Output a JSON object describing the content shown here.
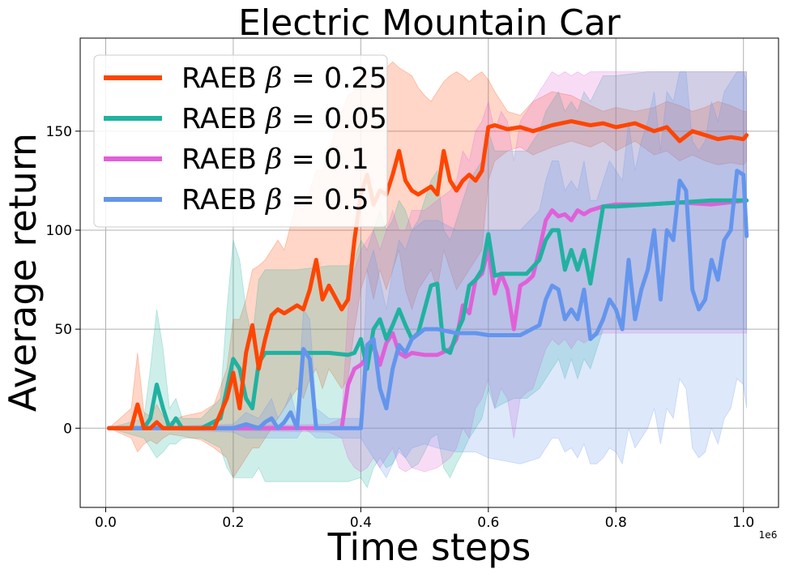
{
  "chart_data": {
    "type": "line",
    "title": "Electric Mountain Car",
    "xlabel": "Time steps",
    "ylabel": "Average return",
    "x_offset_label": "1e6",
    "xlim": [
      -0.04,
      1.055
    ],
    "ylim": [
      -40,
      197
    ],
    "xticks": [
      0.0,
      0.2,
      0.4,
      0.6,
      0.8,
      1.0
    ],
    "xtick_labels": [
      "0.0",
      "0.2",
      "0.4",
      "0.6",
      "0.8",
      "1.0"
    ],
    "yticks": [
      0,
      50,
      100,
      150
    ],
    "ytick_labels": [
      "0",
      "50",
      "100",
      "150"
    ],
    "grid": true,
    "legend_position": "top-left",
    "series": [
      {
        "name": "RAEB β = 0.25",
        "legend_prefix": "RAEB ",
        "legend_param": "0.25",
        "color": "#ff4500",
        "x": [
          0.005,
          0.04,
          0.05,
          0.06,
          0.07,
          0.08,
          0.09,
          0.1,
          0.12,
          0.15,
          0.17,
          0.19,
          0.2,
          0.21,
          0.22,
          0.23,
          0.24,
          0.25,
          0.26,
          0.27,
          0.28,
          0.3,
          0.31,
          0.32,
          0.33,
          0.34,
          0.35,
          0.36,
          0.37,
          0.38,
          0.39,
          0.4,
          0.41,
          0.42,
          0.43,
          0.44,
          0.45,
          0.46,
          0.47,
          0.48,
          0.49,
          0.5,
          0.51,
          0.52,
          0.53,
          0.54,
          0.55,
          0.56,
          0.57,
          0.58,
          0.59,
          0.6,
          0.61,
          0.63,
          0.65,
          0.67,
          0.7,
          0.73,
          0.76,
          0.78,
          0.8,
          0.83,
          0.86,
          0.88,
          0.9,
          0.92,
          0.94,
          0.96,
          0.98,
          1.0,
          1.005
        ],
        "y": [
          0,
          0,
          12,
          0,
          0,
          3,
          0,
          0,
          0,
          0,
          0,
          15,
          28,
          10,
          38,
          52,
          30,
          45,
          57,
          60,
          58,
          62,
          60,
          70,
          85,
          65,
          72,
          66,
          60,
          65,
          95,
          118,
          128,
          113,
          120,
          118,
          128,
          140,
          125,
          120,
          118,
          120,
          122,
          118,
          140,
          125,
          120,
          125,
          128,
          125,
          130,
          152,
          153,
          151,
          152,
          150,
          153,
          155,
          153,
          154,
          152,
          154,
          150,
          152,
          145,
          150,
          148,
          146,
          147,
          146,
          148
        ],
        "band_upper": [
          0,
          10,
          38,
          8,
          6,
          12,
          6,
          3,
          6,
          8,
          12,
          30,
          55,
          55,
          65,
          80,
          82,
          85,
          90,
          95,
          90,
          115,
          110,
          120,
          130,
          130,
          140,
          150,
          160,
          168,
          170,
          178,
          180,
          170,
          178,
          182,
          185,
          182,
          180,
          178,
          172,
          168,
          165,
          170,
          175,
          178,
          180,
          178,
          175,
          178,
          180,
          176,
          170,
          160,
          158,
          165,
          170,
          168,
          163,
          160,
          162,
          160,
          162,
          165,
          163,
          160,
          162,
          165,
          163,
          160,
          160
        ],
        "band_lower": [
          0,
          -5,
          -12,
          -8,
          -6,
          -8,
          -5,
          -3,
          -4,
          -6,
          -10,
          -15,
          -25,
          -20,
          -15,
          -10,
          -10,
          -5,
          0,
          5,
          10,
          20,
          15,
          25,
          30,
          20,
          30,
          25,
          20,
          25,
          50,
          70,
          80,
          65,
          80,
          70,
          80,
          90,
          70,
          60,
          70,
          75,
          80,
          70,
          90,
          80,
          70,
          75,
          80,
          85,
          90,
          125,
          135,
          140,
          142,
          138,
          142,
          145,
          142,
          145,
          140,
          145,
          138,
          140,
          135,
          138,
          135,
          133,
          134,
          133,
          135
        ]
      },
      {
        "name": "RAEB β = 0.05",
        "legend_prefix": "RAEB ",
        "legend_param": "0.05",
        "color": "#20b2a0",
        "x": [
          0.005,
          0.06,
          0.07,
          0.08,
          0.09,
          0.1,
          0.11,
          0.12,
          0.15,
          0.18,
          0.19,
          0.2,
          0.21,
          0.22,
          0.23,
          0.24,
          0.25,
          0.3,
          0.35,
          0.38,
          0.39,
          0.4,
          0.41,
          0.42,
          0.43,
          0.44,
          0.45,
          0.46,
          0.47,
          0.48,
          0.49,
          0.5,
          0.51,
          0.52,
          0.53,
          0.54,
          0.55,
          0.56,
          0.57,
          0.58,
          0.59,
          0.6,
          0.61,
          0.62,
          0.64,
          0.66,
          0.68,
          0.69,
          0.7,
          0.71,
          0.72,
          0.73,
          0.74,
          0.75,
          0.76,
          0.78,
          0.8,
          0.85,
          0.9,
          0.95,
          1.005
        ],
        "y": [
          0,
          0,
          5,
          22,
          10,
          0,
          5,
          0,
          0,
          5,
          20,
          35,
          30,
          15,
          10,
          33,
          38,
          38,
          38,
          37,
          38,
          45,
          30,
          50,
          55,
          45,
          52,
          60,
          52,
          45,
          48,
          60,
          72,
          73,
          40,
          38,
          48,
          55,
          72,
          75,
          80,
          98,
          77,
          78,
          78,
          78,
          85,
          95,
          100,
          100,
          80,
          90,
          80,
          90,
          73,
          112,
          112,
          113,
          114,
          115,
          115
        ],
        "band_upper": [
          0,
          5,
          30,
          60,
          40,
          10,
          15,
          5,
          5,
          15,
          60,
          95,
          85,
          60,
          45,
          75,
          80,
          80,
          82,
          82,
          85,
          95,
          90,
          100,
          110,
          100,
          105,
          115,
          110,
          100,
          105,
          115,
          125,
          130,
          100,
          95,
          105,
          115,
          125,
          130,
          135,
          150,
          140,
          140,
          140,
          140,
          150,
          160,
          165,
          170,
          160,
          165,
          160,
          170,
          165,
          178,
          178,
          180,
          180,
          180,
          180
        ],
        "band_lower": [
          0,
          -5,
          -10,
          -15,
          -12,
          -8,
          -8,
          -5,
          -5,
          -10,
          -20,
          -25,
          -25,
          -25,
          -25,
          -20,
          -27,
          -27,
          -27,
          -27,
          -26,
          -25,
          -30,
          -20,
          -15,
          -20,
          -18,
          -10,
          -15,
          -20,
          -18,
          -12,
          -5,
          -3,
          -20,
          -25,
          -18,
          -12,
          -5,
          0,
          5,
          20,
          10,
          12,
          15,
          15,
          20,
          25,
          30,
          35,
          25,
          35,
          25,
          35,
          30,
          50,
          50,
          50,
          50,
          50,
          50
        ]
      },
      {
        "name": "RAEB β = 0.1",
        "legend_prefix": "RAEB ",
        "legend_param": "0.1",
        "color": "#e060d8",
        "x": [
          0.005,
          0.35,
          0.37,
          0.38,
          0.39,
          0.4,
          0.41,
          0.42,
          0.43,
          0.44,
          0.45,
          0.46,
          0.47,
          0.48,
          0.5,
          0.52,
          0.54,
          0.55,
          0.56,
          0.57,
          0.58,
          0.59,
          0.6,
          0.61,
          0.62,
          0.63,
          0.64,
          0.65,
          0.66,
          0.67,
          0.68,
          0.69,
          0.7,
          0.71,
          0.72,
          0.73,
          0.74,
          0.75,
          0.76,
          0.78,
          0.8,
          0.85,
          0.9,
          0.95,
          1.005
        ],
        "y": [
          0,
          0,
          0,
          22,
          30,
          32,
          36,
          42,
          32,
          43,
          48,
          38,
          36,
          38,
          37,
          37,
          40,
          45,
          62,
          58,
          75,
          78,
          90,
          68,
          78,
          70,
          50,
          72,
          74,
          77,
          90,
          105,
          110,
          107,
          108,
          105,
          110,
          108,
          110,
          112,
          113,
          113,
          114,
          113,
          115
        ],
        "band_upper": [
          0,
          2,
          5,
          60,
          80,
          90,
          95,
          100,
          90,
          100,
          110,
          100,
          100,
          110,
          110,
          115,
          120,
          125,
          140,
          135,
          150,
          155,
          165,
          150,
          160,
          155,
          135,
          155,
          160,
          165,
          170,
          175,
          180,
          178,
          180,
          178,
          180,
          178,
          180,
          180,
          180,
          180,
          180,
          180,
          180
        ],
        "band_lower": [
          0,
          -2,
          -5,
          -15,
          -20,
          -22,
          -20,
          -15,
          -20,
          -15,
          -10,
          -20,
          -22,
          -20,
          -22,
          -20,
          -15,
          -10,
          0,
          -5,
          10,
          15,
          25,
          10,
          20,
          15,
          -5,
          15,
          18,
          20,
          30,
          40,
          45,
          42,
          45,
          40,
          45,
          43,
          45,
          48,
          48,
          48,
          48,
          48,
          48
        ]
      },
      {
        "name": "RAEB β = 0.5",
        "legend_prefix": "RAEB ",
        "legend_param": "0.5",
        "color": "#6495ed",
        "x": [
          0.005,
          0.2,
          0.22,
          0.24,
          0.25,
          0.26,
          0.27,
          0.28,
          0.29,
          0.3,
          0.31,
          0.32,
          0.33,
          0.35,
          0.36,
          0.37,
          0.38,
          0.39,
          0.4,
          0.41,
          0.42,
          0.43,
          0.44,
          0.45,
          0.46,
          0.47,
          0.48,
          0.5,
          0.52,
          0.55,
          0.58,
          0.6,
          0.65,
          0.68,
          0.69,
          0.7,
          0.71,
          0.72,
          0.73,
          0.74,
          0.75,
          0.76,
          0.77,
          0.78,
          0.79,
          0.8,
          0.81,
          0.82,
          0.83,
          0.84,
          0.85,
          0.86,
          0.87,
          0.88,
          0.89,
          0.9,
          0.91,
          0.92,
          0.93,
          0.94,
          0.95,
          0.96,
          0.97,
          0.98,
          0.99,
          1.0,
          1.005
        ],
        "y": [
          0,
          0,
          2,
          0,
          3,
          5,
          0,
          3,
          8,
          0,
          40,
          35,
          0,
          0,
          0,
          0,
          0,
          0,
          0,
          42,
          45,
          20,
          10,
          30,
          42,
          38,
          45,
          50,
          50,
          48,
          48,
          47,
          47,
          52,
          65,
          72,
          70,
          55,
          60,
          55,
          70,
          45,
          48,
          55,
          65,
          60,
          50,
          85,
          55,
          70,
          80,
          100,
          65,
          100,
          95,
          125,
          120,
          70,
          60,
          65,
          85,
          75,
          95,
          100,
          130,
          128,
          97
        ],
        "band_upper": [
          0,
          2,
          8,
          5,
          10,
          15,
          5,
          10,
          18,
          5,
          60,
          55,
          10,
          5,
          5,
          5,
          5,
          5,
          5,
          80,
          90,
          75,
          60,
          80,
          95,
          90,
          100,
          105,
          105,
          100,
          100,
          100,
          100,
          110,
          125,
          135,
          135,
          120,
          125,
          120,
          135,
          115,
          115,
          125,
          135,
          130,
          125,
          155,
          130,
          145,
          155,
          170,
          140,
          170,
          165,
          180,
          180,
          145,
          140,
          145,
          165,
          155,
          170,
          175,
          180,
          180,
          175
        ],
        "band_lower": [
          0,
          -2,
          -5,
          -5,
          -5,
          -5,
          -5,
          -5,
          -5,
          -5,
          0,
          -2,
          -5,
          -5,
          -5,
          -5,
          -5,
          -5,
          -5,
          -10,
          -15,
          -20,
          -25,
          -18,
          -12,
          -15,
          -10,
          -8,
          -10,
          -12,
          -12,
          -15,
          -18,
          -15,
          -10,
          -5,
          -5,
          -12,
          -10,
          -15,
          -8,
          -18,
          -18,
          -15,
          -10,
          -12,
          -18,
          0,
          -10,
          -5,
          0,
          10,
          -8,
          10,
          5,
          25,
          20,
          -10,
          -15,
          -12,
          0,
          -8,
          5,
          10,
          25,
          22,
          10
        ]
      }
    ]
  }
}
